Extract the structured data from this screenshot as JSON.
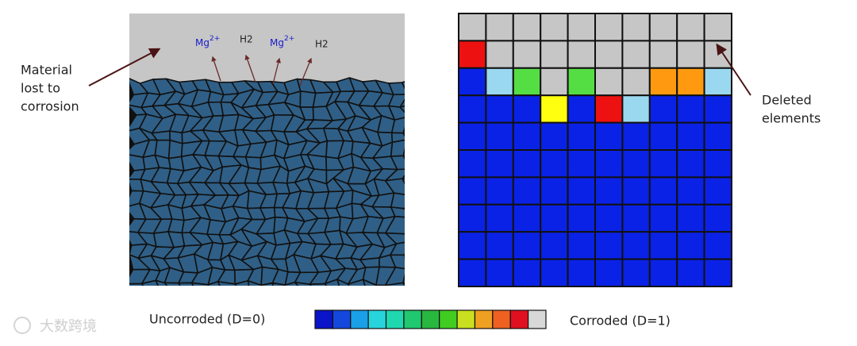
{
  "left_panel": {
    "annotation": [
      "Material",
      "lost to",
      "corrosion"
    ],
    "species": [
      {
        "base": "Mg",
        "sup": "2+"
      },
      {
        "base": "H2"
      },
      {
        "base": "Mg",
        "sup": "2+"
      },
      {
        "base": "H2"
      }
    ]
  },
  "right_panel": {
    "annotation": [
      "Deleted",
      "elements"
    ]
  },
  "legend": {
    "low_label": "Uncorroded (D=0)",
    "high_label": "Corroded (D=1)"
  },
  "watermark": "大数跨境"
}
